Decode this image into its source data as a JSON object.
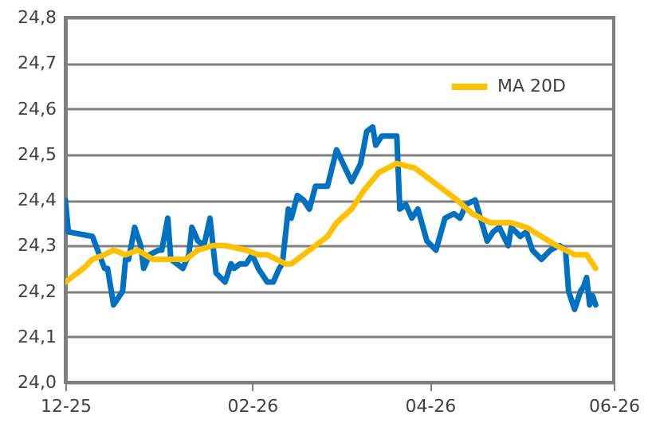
{
  "chart_data": {
    "type": "line",
    "xlim": [
      "2025-12-01",
      "2026-06-01"
    ],
    "xticks": [
      {
        "value": "2025-12-01",
        "label": "12-25"
      },
      {
        "value": "2026-02-01",
        "label": "02-26"
      },
      {
        "value": "2026-04-01",
        "label": "04-26"
      },
      {
        "value": "2026-06-01",
        "label": "06-26"
      }
    ],
    "ylim": [
      24.0,
      24.8
    ],
    "yticks": [
      {
        "value": 24.0,
        "label": "24,0"
      },
      {
        "value": 24.1,
        "label": "24,1"
      },
      {
        "value": 24.2,
        "label": "24,2"
      },
      {
        "value": 24.3,
        "label": "24,3"
      },
      {
        "value": 24.4,
        "label": "24,4"
      },
      {
        "value": 24.5,
        "label": "24,5"
      },
      {
        "value": 24.6,
        "label": "24,6"
      },
      {
        "value": 24.7,
        "label": "24,7"
      },
      {
        "value": 24.8,
        "label": "24,8"
      }
    ],
    "grid": "y",
    "legend": "top right",
    "marker": "none",
    "line_style": "solid",
    "series": [
      {
        "color": "#0070c0",
        "x": [
          "2025-12-01",
          "2025-12-02",
          "2025-12-10",
          "2025-12-14",
          "2025-12-15",
          "2025-12-17",
          "2025-12-19",
          "2025-12-20",
          "2025-12-21",
          "2025-12-22",
          "2025-12-24",
          "2025-12-26",
          "2025-12-27",
          "2025-12-29",
          "2026-01-01",
          "2026-01-02",
          "2026-01-04",
          "2026-01-05",
          "2026-01-07",
          "2026-01-09",
          "2026-01-11",
          "2026-01-12",
          "2026-01-14",
          "2026-01-16",
          "2026-01-18",
          "2026-01-20",
          "2026-01-23",
          "2026-01-25",
          "2026-01-26",
          "2026-01-28",
          "2026-01-30",
          "2026-02-01",
          "2026-02-03",
          "2026-02-06",
          "2026-02-08",
          "2026-02-10",
          "2026-02-11",
          "2026-02-13",
          "2026-02-14",
          "2026-02-16",
          "2026-02-18",
          "2026-02-20",
          "2026-02-22",
          "2026-02-26",
          "2026-03-01",
          "2026-03-06",
          "2026-03-09",
          "2026-03-11",
          "2026-03-13",
          "2026-03-14",
          "2026-03-16",
          "2026-03-21",
          "2026-03-22",
          "2026-03-24",
          "2026-03-26",
          "2026-03-28",
          "2026-03-31",
          "2026-04-03",
          "2026-04-06",
          "2026-04-09",
          "2026-04-11",
          "2026-04-13",
          "2026-04-16",
          "2026-04-20",
          "2026-04-22",
          "2026-04-24",
          "2026-04-27",
          "2026-04-28",
          "2026-05-01",
          "2026-05-03",
          "2026-05-05",
          "2026-05-08",
          "2026-05-11",
          "2026-05-14",
          "2026-05-16",
          "2026-05-17",
          "2026-05-19",
          "2026-05-21",
          "2026-05-22",
          "2026-05-23",
          "2026-05-24",
          "2026-05-25",
          "2026-05-26"
        ],
        "values": [
          24.4,
          24.33,
          24.32,
          24.25,
          24.25,
          24.17,
          24.19,
          24.2,
          24.27,
          24.27,
          24.34,
          24.3,
          24.25,
          24.28,
          24.29,
          24.29,
          24.36,
          24.27,
          24.26,
          24.25,
          24.28,
          24.34,
          24.31,
          24.3,
          24.36,
          24.24,
          24.22,
          24.26,
          24.25,
          24.26,
          24.26,
          24.28,
          24.25,
          24.22,
          24.22,
          24.25,
          24.26,
          24.38,
          24.36,
          24.41,
          24.4,
          24.38,
          24.43,
          24.43,
          24.51,
          24.44,
          24.48,
          24.55,
          24.56,
          24.52,
          24.54,
          24.54,
          24.38,
          24.39,
          24.36,
          24.38,
          24.31,
          24.29,
          24.36,
          24.37,
          24.36,
          24.39,
          24.4,
          24.31,
          24.33,
          24.34,
          24.3,
          24.34,
          24.32,
          24.33,
          24.29,
          24.27,
          24.29,
          24.3,
          24.29,
          24.2,
          24.16,
          24.2,
          24.21,
          24.23,
          24.17,
          24.19,
          24.17
        ]
      },
      {
        "name": "MA 20D",
        "color": "#ffc000",
        "x": [
          "2025-12-01",
          "2025-12-07",
          "2025-12-10",
          "2025-12-14",
          "2025-12-17",
          "2025-12-21",
          "2025-12-25",
          "2025-12-30",
          "2026-01-04",
          "2026-01-10",
          "2026-01-14",
          "2026-01-19",
          "2026-01-23",
          "2026-01-30",
          "2026-02-03",
          "2026-02-06",
          "2026-02-12",
          "2026-02-14",
          "2026-02-18",
          "2026-02-22",
          "2026-02-26",
          "2026-03-01",
          "2026-03-06",
          "2026-03-10",
          "2026-03-15",
          "2026-03-21",
          "2026-03-27",
          "2026-03-31",
          "2026-04-04",
          "2026-04-10",
          "2026-04-15",
          "2026-04-21",
          "2026-04-28",
          "2026-05-03",
          "2026-05-08",
          "2026-05-13",
          "2026-05-19",
          "2026-05-23",
          "2026-05-26"
        ],
        "values": [
          24.22,
          24.25,
          24.27,
          24.28,
          24.29,
          24.28,
          24.29,
          24.27,
          24.27,
          24.27,
          24.29,
          24.3,
          24.3,
          24.29,
          24.28,
          24.28,
          24.26,
          24.26,
          24.28,
          24.3,
          24.32,
          24.35,
          24.38,
          24.42,
          24.46,
          24.48,
          24.47,
          24.45,
          24.43,
          24.4,
          24.37,
          24.35,
          24.35,
          24.34,
          24.32,
          24.3,
          24.28,
          24.28,
          24.25
        ]
      }
    ]
  }
}
